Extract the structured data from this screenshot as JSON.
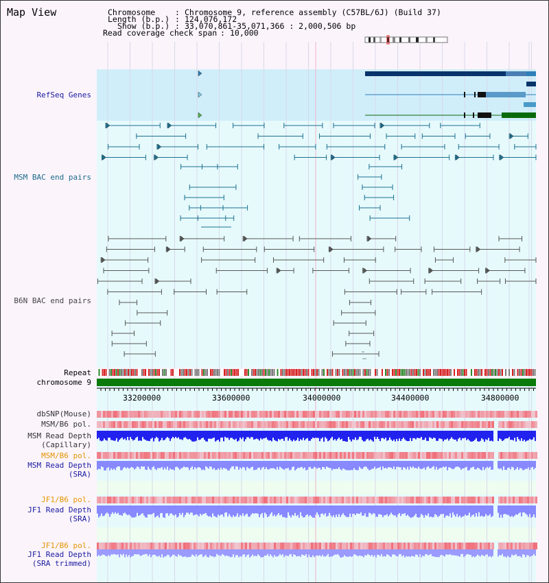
{
  "title": "Map View",
  "header": {
    "chromosome_key": "Chromosome",
    "chromosome_val": "Chromosome 9, reference assembly (C57BL/6J) (Build 37)",
    "length_key": "Length (b.p.)",
    "length_val": "124,076,172",
    "show_key": "Show (b.p.)",
    "show_val": "33,070,861-35,071,366 : 2,000,506 bp",
    "span_key": "Read coverage check span",
    "span_val": "10,000"
  },
  "tracks": {
    "refseq": "RefSeq Genes",
    "msm_bac": "MSM BAC end pairs",
    "b6n_bac": "B6N BAC end pairs",
    "repeat": "Repeat",
    "chromosome": "chromosome 9",
    "dbsnp": "dbSNP(Mouse)",
    "msm_pol": "MSM/B6 pol.",
    "msm_depth_cap_1": "MSM Read Depth",
    "msm_depth_cap_2": "(Capillary)",
    "msm_pol2": "MSM/B6 pol.",
    "msm_depth_sra_1": "MSM Read Depth",
    "msm_depth_sra_2": "(SRA)",
    "jf1_pol": "JF1/B6 pol.",
    "jf1_depth_1": "JF1 Read Depth",
    "jf1_depth_2": "(SRA)",
    "jf1_pol2": "JF1/B6 pol.",
    "jf1_trim_1": "JF1 Read Depth",
    "jf1_trim_2": "(SRA trimmed)"
  },
  "axis_ticks": [
    "33200000",
    "33600000",
    "34000000",
    "34400000",
    "34800000"
  ],
  "colors": {
    "refseq_bg": "#d0eefa",
    "track_bg": "#e6fafc",
    "green_bg": "#eefdf0",
    "msm_bac": "#1a6f8f",
    "b6n_bac": "#555555",
    "gene_dark": "#08336b",
    "gene_mid": "#2c7fb8",
    "gene_green": "#0a6a0a",
    "chrom": "#0a7a0a",
    "snp": "#e8434a",
    "depth_dark": "#2222ee",
    "depth_light": "#8888ff",
    "label_blue": "#1a1aa0",
    "label_orange": "#e69500",
    "label_teal": "#1a6a8a"
  }
}
